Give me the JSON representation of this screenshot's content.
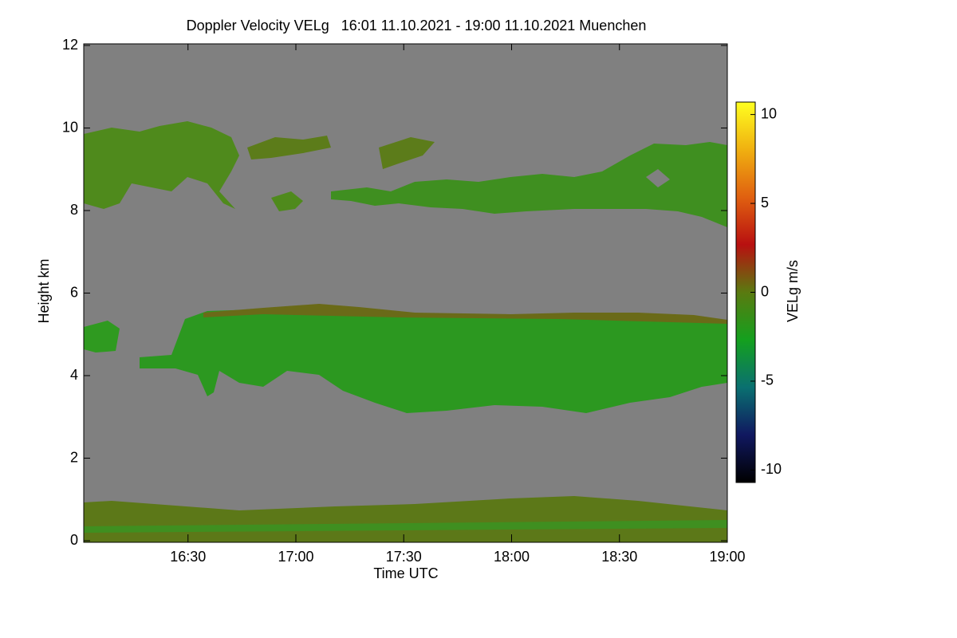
{
  "chart_data": {
    "type": "heatmap",
    "title": "Doppler Velocity VELg   16:01 11.10.2021 - 19:00 11.10.2021 Muenchen",
    "x_label": "Time UTC",
    "y_label": "Height km",
    "colorbar_label": "VELg m/s",
    "xlim": [
      961,
      1140
    ],
    "xticks": [
      {
        "value": 990,
        "label": "16:30"
      },
      {
        "value": 1020,
        "label": "17:00"
      },
      {
        "value": 1050,
        "label": "17:30"
      },
      {
        "value": 1080,
        "label": "18:00"
      },
      {
        "value": 1110,
        "label": "18:30"
      },
      {
        "value": 1140,
        "label": "19:00"
      }
    ],
    "ylim": [
      0,
      12
    ],
    "yticks": [
      0,
      2,
      4,
      6,
      8,
      10,
      12
    ],
    "clim": [
      -10.7,
      10.7
    ],
    "cticks": [
      -10,
      -5,
      0,
      5,
      10
    ],
    "background_color": "#808080",
    "colormap": [
      "#000000",
      "#101860",
      "#0a7070",
      "#14a01e",
      "#5a7a10",
      "#b81010",
      "#e06010",
      "#f0b010",
      "#ffff20"
    ]
  }
}
